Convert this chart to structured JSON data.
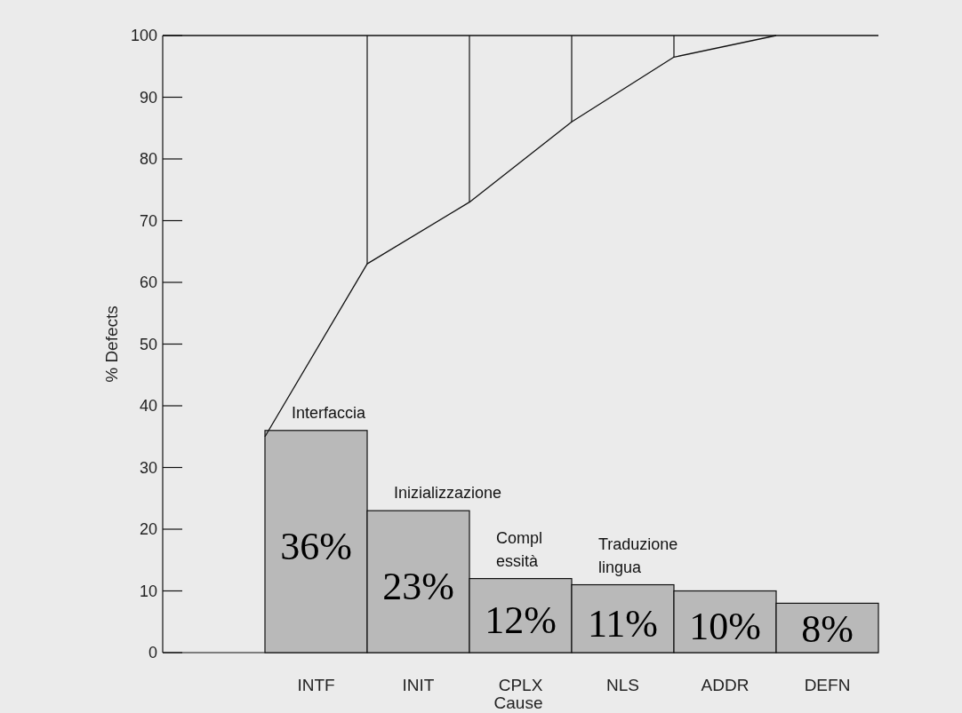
{
  "chart_data": {
    "type": "bar",
    "xlabel": "Cause",
    "ylabel": "% Defects",
    "categories": [
      null,
      "INTF",
      null,
      "INIT",
      null,
      "CPLX",
      null,
      "NLS",
      null,
      "ADDR",
      null,
      "DEFN",
      null
    ],
    "series": [
      {
        "color": "#b9b9b9",
        "values": [
          null,
          36,
          null,
          23,
          null,
          12,
          null,
          11,
          null,
          10,
          null,
          8,
          null
        ],
        "value_labels": [
          null,
          "36%",
          null,
          "23%",
          null,
          "12%",
          null,
          "11%",
          null,
          "10%",
          null,
          "8%",
          null
        ]
      },
      {
        "type": "line",
        "color": "#111111",
        "values": [
          35,
          null,
          63,
          null,
          73,
          null,
          86,
          null,
          96.5,
          null,
          100,
          null,
          null
        ],
        "errors": [
          null,
          null,
          [
            63,
            100
          ],
          null,
          [
            73,
            100
          ],
          null,
          [
            86,
            100
          ],
          null,
          [
            96.5,
            100
          ],
          null,
          null,
          null,
          null
        ]
      }
    ],
    "ylim": [
      0,
      100
    ],
    "yticks": [
      0,
      10,
      20,
      30,
      40,
      50,
      60,
      70,
      80,
      90,
      100
    ],
    "ref_lines": [
      {
        "axis": "y",
        "value": 100,
        "color": "#111111"
      }
    ],
    "annotations": [
      {
        "text": "Interfaccia",
        "x": "INTF",
        "y": 36
      },
      {
        "text": "Inizializzazione",
        "x": "INIT",
        "y": 23
      },
      {
        "text": "Compl\nessità",
        "x": "CPLX",
        "y": 12
      },
      {
        "text": "Traduzione\nlingua",
        "x": "NLS",
        "y": 11
      }
    ],
    "grid": false,
    "marker": "none",
    "line_style": "solid"
  }
}
